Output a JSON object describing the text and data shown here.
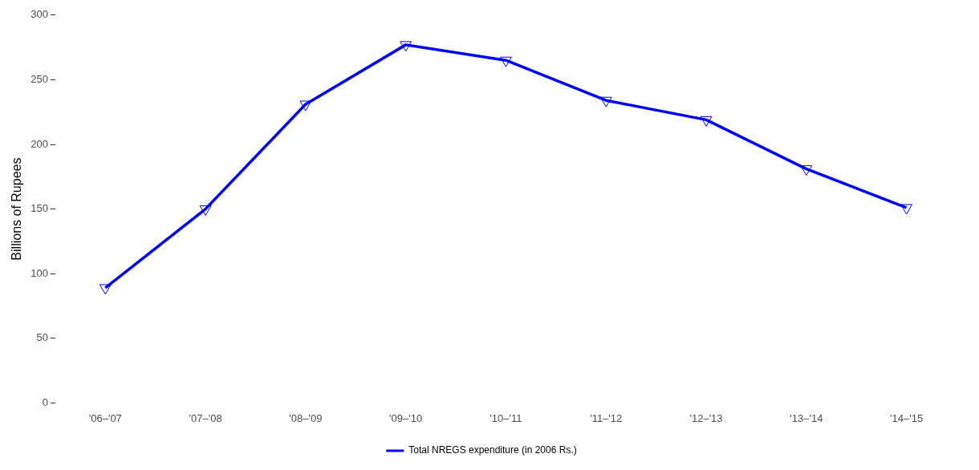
{
  "chart_data": {
    "type": "line",
    "ylabel": "Billions of Rupees",
    "categories": [
      "'06–'07",
      "'07–'08",
      "'08–'09",
      "'09–'10",
      "'10–'11",
      "'11–'12",
      "'12–'13",
      "'13–'14",
      "'14–'15"
    ],
    "series": [
      {
        "name": "Total NREGS expenditure (in 2006 Rs.)",
        "color": "#0000ff",
        "values": [
          89,
          150,
          231,
          277,
          265,
          234,
          219,
          181,
          151
        ]
      }
    ],
    "ylim": [
      0,
      300
    ],
    "yticks": [
      0,
      50,
      100,
      150,
      200,
      250,
      300
    ],
    "grid": false,
    "legend": "bottom",
    "marker": "triangle",
    "line_style": "solid"
  }
}
